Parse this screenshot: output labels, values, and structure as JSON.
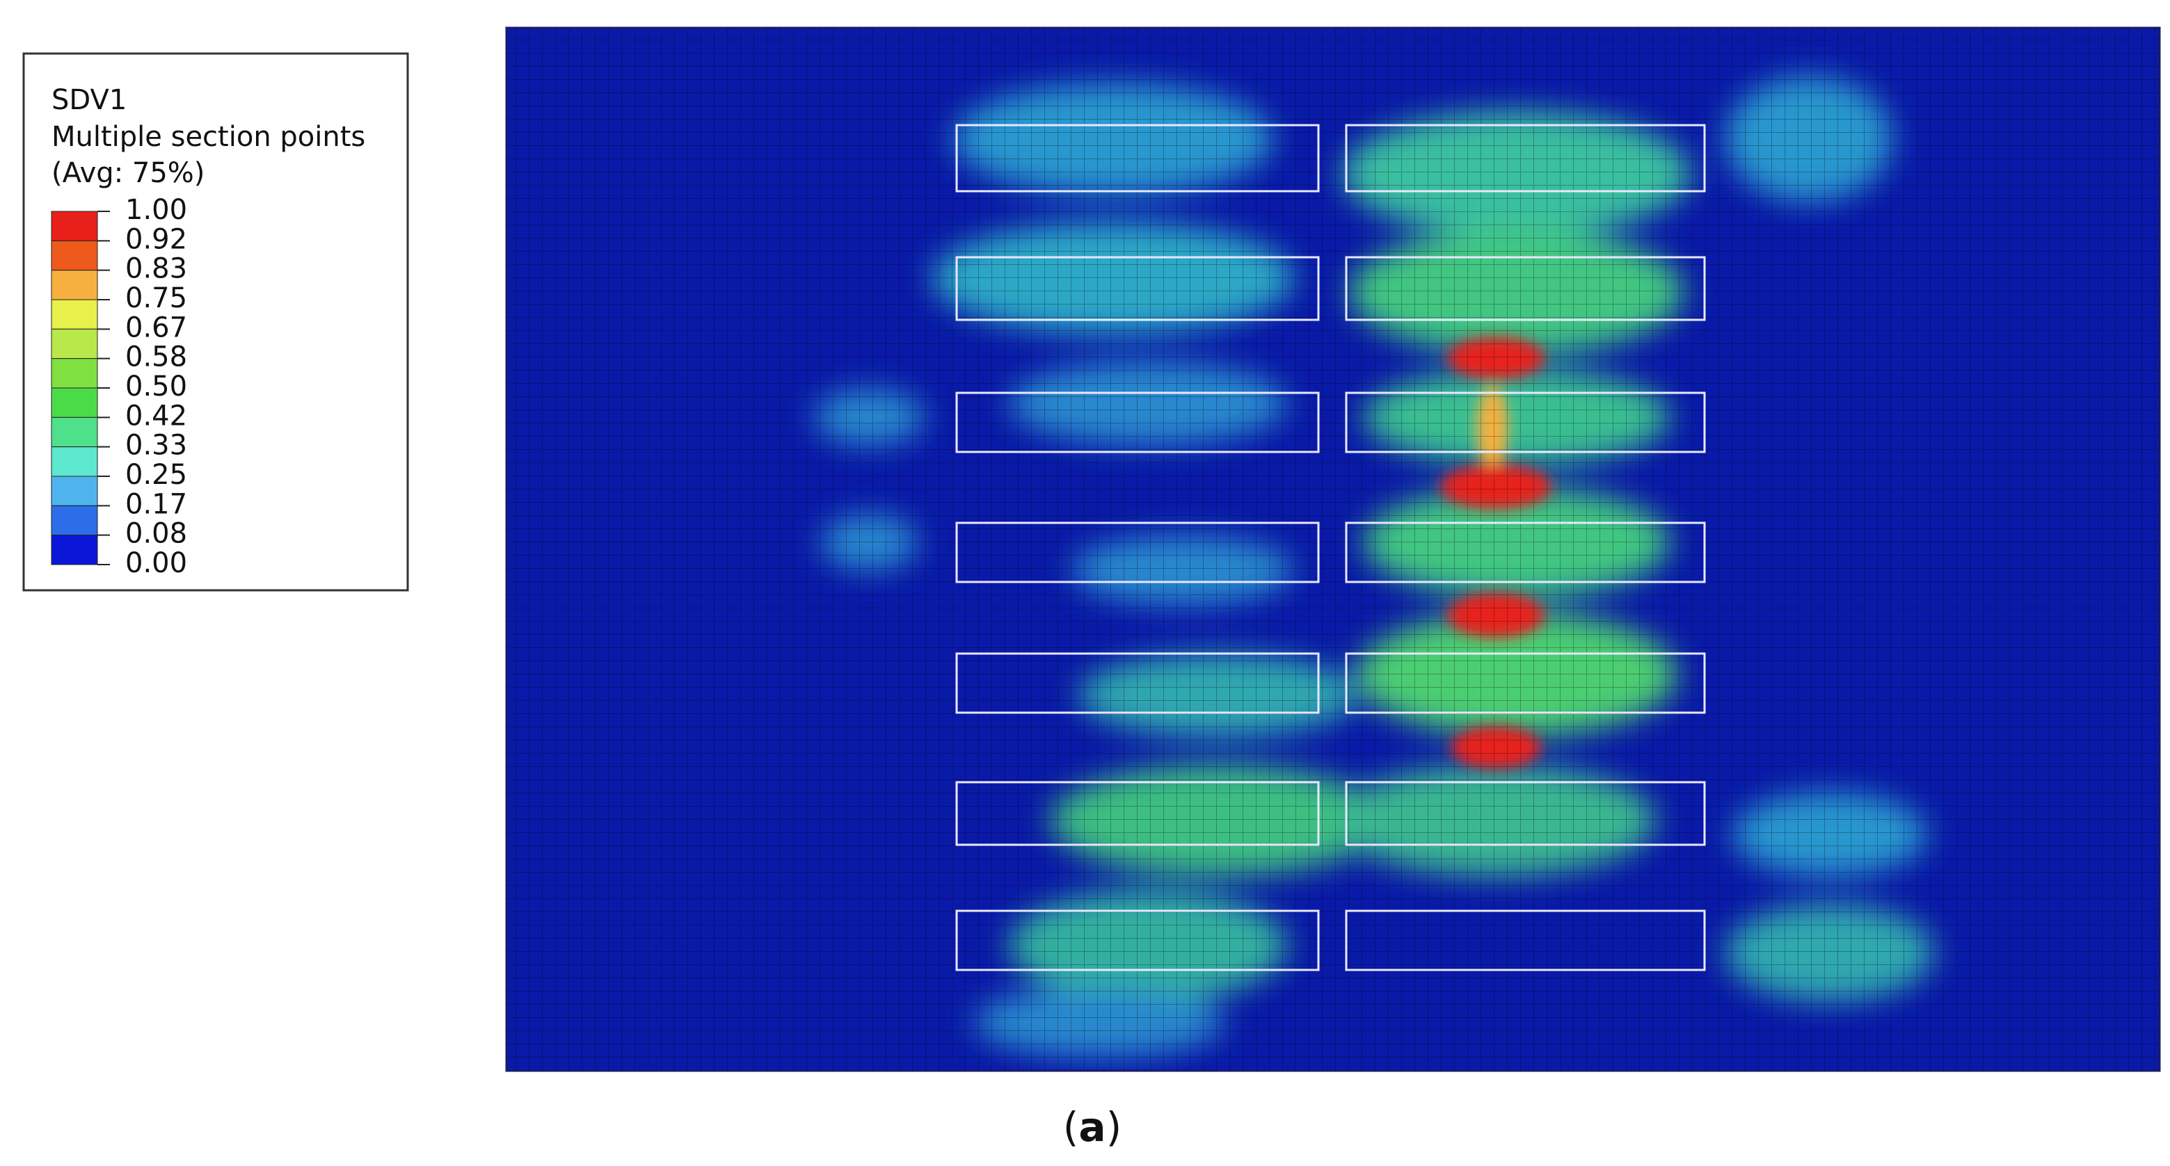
{
  "legend": {
    "title": "SDV1",
    "lines": [
      "Multiple section points",
      "(Avg: 75%)"
    ],
    "ticks": [
      "1.00",
      "0.92",
      "0.83",
      "0.75",
      "0.67",
      "0.58",
      "0.50",
      "0.42",
      "0.33",
      "0.25",
      "0.17",
      "0.08",
      "0.00"
    ],
    "colors": [
      "#e8201a",
      "#ee5a1c",
      "#f5b040",
      "#e8f04a",
      "#b9e84a",
      "#7fe040",
      "#4cdb48",
      "#4ee08a",
      "#5ee8d0",
      "#4fb4ee",
      "#2b6ee8",
      "#0c16d8"
    ]
  },
  "caption": {
    "open": "(",
    "letter": "a",
    "close": ")"
  }
}
